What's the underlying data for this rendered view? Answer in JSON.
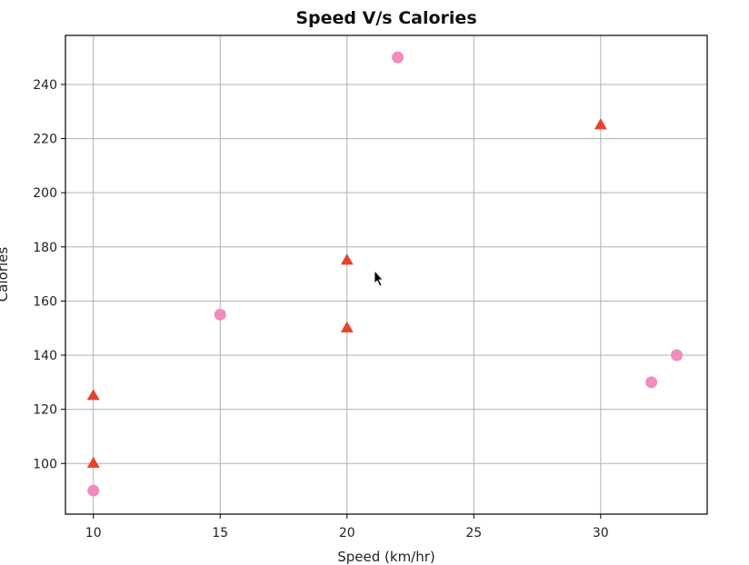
{
  "chart_data": {
    "type": "scatter",
    "title": "Speed V/s Calories",
    "xlabel": "Speed (km/hr)",
    "ylabel": "Calories",
    "xlim": [
      8.9,
      34.2
    ],
    "ylim": [
      81.3,
      258.1
    ],
    "grid": true,
    "x_ticks": [
      10,
      15,
      20,
      25,
      30
    ],
    "y_ticks": [
      100,
      120,
      140,
      160,
      180,
      200,
      220,
      240
    ],
    "series": [
      {
        "marker": "circle",
        "color": "#f08cbe",
        "points": [
          {
            "x": 10,
            "y": 90
          },
          {
            "x": 15,
            "y": 155
          },
          {
            "x": 22,
            "y": 250
          },
          {
            "x": 32,
            "y": 130
          },
          {
            "x": 33,
            "y": 140
          }
        ]
      },
      {
        "marker": "triangle",
        "color": "#e8412d",
        "points": [
          {
            "x": 10,
            "y": 100
          },
          {
            "x": 10,
            "y": 125
          },
          {
            "x": 20,
            "y": 150
          },
          {
            "x": 20,
            "y": 175
          },
          {
            "x": 30,
            "y": 225
          }
        ]
      }
    ]
  }
}
